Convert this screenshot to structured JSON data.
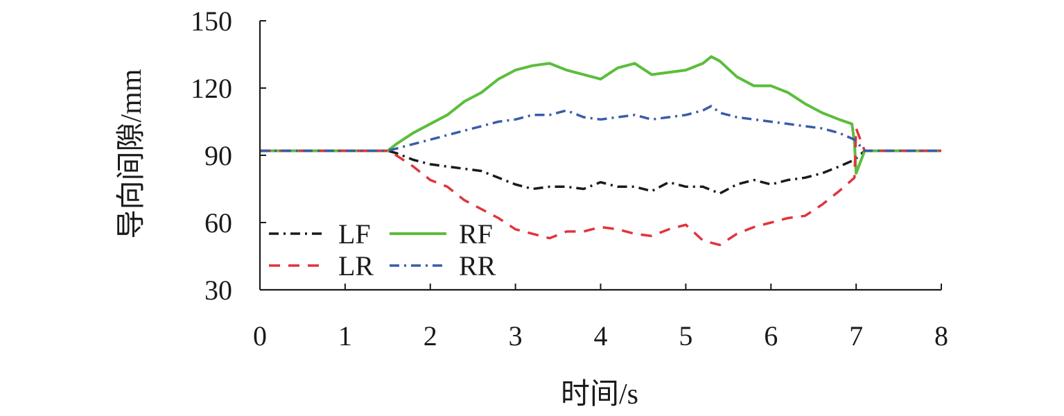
{
  "chart_data": {
    "type": "line",
    "xlabel": "时间/s",
    "ylabel": "导向间隙/mm",
    "xlim": [
      0,
      8
    ],
    "ylim": [
      30,
      150
    ],
    "xticks": [
      "0",
      "1",
      "2",
      "3",
      "4",
      "5",
      "6",
      "7",
      "8"
    ],
    "yticks": [
      "30",
      "60",
      "90",
      "120",
      "150"
    ],
    "grid": false,
    "legend_position": "bottom-left",
    "colors": {
      "axis": "#1a1a1a",
      "LF": "#1a1a1a",
      "RF": "#5cbd3c",
      "LR": "#e0343c",
      "RR": "#3a5ca8"
    },
    "series": [
      {
        "name": "LF",
        "dash": "dash-dot",
        "x": [
          0,
          0.2,
          0.4,
          0.6,
          0.8,
          1.0,
          1.2,
          1.4,
          1.5,
          1.6,
          1.8,
          2.0,
          2.2,
          2.4,
          2.6,
          2.8,
          3.0,
          3.2,
          3.4,
          3.6,
          3.8,
          4.0,
          4.2,
          4.4,
          4.6,
          4.8,
          5.0,
          5.2,
          5.4,
          5.6,
          5.8,
          6.0,
          6.2,
          6.4,
          6.6,
          6.8,
          6.98,
          7.1,
          7.3,
          7.5,
          7.7,
          7.9,
          8.0
        ],
        "values": [
          92,
          92,
          92,
          92,
          92,
          92,
          92,
          92,
          92,
          91,
          88,
          86,
          85,
          84,
          83,
          80,
          77,
          75,
          76,
          76,
          75,
          78,
          76,
          76,
          74,
          78,
          76,
          76,
          73,
          77,
          79,
          77,
          79,
          80,
          82,
          85,
          88,
          92,
          92,
          92,
          92,
          92,
          92
        ]
      },
      {
        "name": "RF",
        "dash": "solid",
        "x": [
          0,
          0.2,
          0.4,
          0.6,
          0.8,
          1.0,
          1.2,
          1.4,
          1.5,
          1.6,
          1.8,
          2.0,
          2.2,
          2.4,
          2.6,
          2.8,
          3.0,
          3.2,
          3.4,
          3.6,
          3.8,
          4.0,
          4.2,
          4.4,
          4.6,
          4.8,
          5.0,
          5.2,
          5.3,
          5.4,
          5.6,
          5.8,
          6.0,
          6.2,
          6.4,
          6.6,
          6.8,
          6.95,
          6.98,
          7.0,
          7.1,
          7.3,
          7.5,
          7.7,
          7.9,
          8.0
        ],
        "values": [
          92,
          92,
          92,
          92,
          92,
          92,
          92,
          92,
          92,
          95,
          100,
          104,
          108,
          114,
          118,
          124,
          128,
          130,
          131,
          128,
          126,
          124,
          129,
          131,
          126,
          127,
          128,
          131,
          134,
          132,
          125,
          121,
          121,
          118,
          113,
          109,
          106,
          104,
          96,
          82,
          92,
          92,
          92,
          92,
          92,
          92
        ]
      },
      {
        "name": "LR",
        "dash": "dashed",
        "x": [
          0,
          0.2,
          0.4,
          0.6,
          0.8,
          1.0,
          1.2,
          1.4,
          1.5,
          1.6,
          1.8,
          2.0,
          2.2,
          2.4,
          2.6,
          2.8,
          3.0,
          3.2,
          3.4,
          3.6,
          3.8,
          4.0,
          4.2,
          4.4,
          4.6,
          4.8,
          5.0,
          5.2,
          5.4,
          5.6,
          5.8,
          6.0,
          6.2,
          6.4,
          6.6,
          6.8,
          6.98,
          7.0,
          7.1,
          7.3,
          7.5,
          7.7,
          7.9,
          8.0
        ],
        "values": [
          92,
          92,
          92,
          92,
          92,
          92,
          92,
          92,
          92,
          90,
          85,
          79,
          76,
          70,
          66,
          62,
          57,
          55,
          53,
          56,
          56,
          58,
          57,
          55,
          54,
          57,
          59,
          52,
          50,
          55,
          58,
          60,
          62,
          63,
          68,
          74,
          80,
          102,
          92,
          92,
          92,
          92,
          92,
          92
        ]
      },
      {
        "name": "RR",
        "dash": "dash-dot",
        "x": [
          0,
          0.2,
          0.4,
          0.6,
          0.8,
          1.0,
          1.2,
          1.4,
          1.5,
          1.6,
          1.8,
          2.0,
          2.2,
          2.4,
          2.6,
          2.8,
          3.0,
          3.2,
          3.4,
          3.6,
          3.8,
          4.0,
          4.2,
          4.4,
          4.6,
          4.8,
          5.0,
          5.2,
          5.3,
          5.4,
          5.6,
          5.8,
          6.0,
          6.2,
          6.4,
          6.6,
          6.8,
          6.98,
          7.1,
          7.3,
          7.5,
          7.7,
          7.9,
          8.0
        ],
        "values": [
          92,
          92,
          92,
          92,
          92,
          92,
          92,
          92,
          92,
          93,
          95,
          97,
          99,
          101,
          103,
          105,
          106,
          108,
          108,
          110,
          107,
          106,
          107,
          108,
          106,
          107,
          108,
          110,
          112,
          109,
          107,
          106,
          105,
          104,
          103,
          102,
          100,
          97,
          92,
          92,
          92,
          92,
          92,
          92
        ]
      }
    ]
  }
}
